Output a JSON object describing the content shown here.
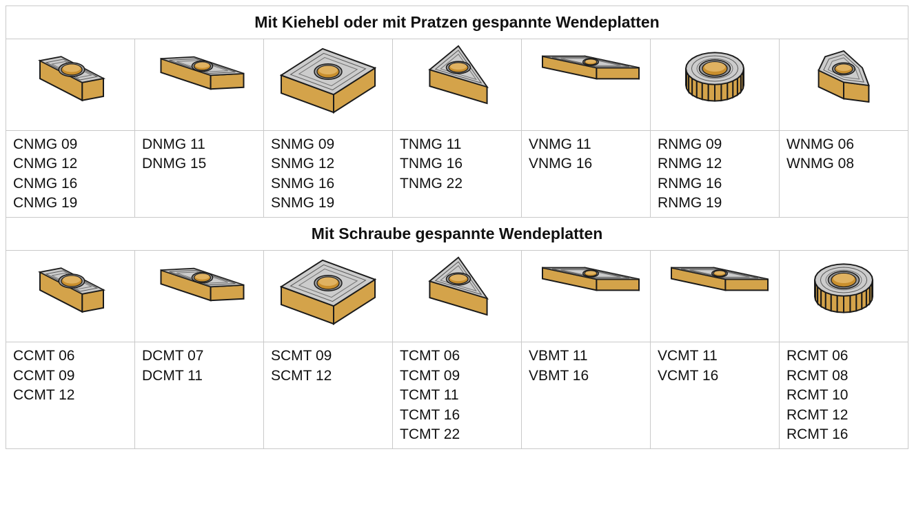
{
  "table": {
    "border_color": "#c9c9c9",
    "background": "#ffffff",
    "text_color": "#111111",
    "header_fontsize": 23,
    "cell_fontsize": 21,
    "column_count": 7
  },
  "insert_style": {
    "top_fill": "#bdbdbd",
    "top_highlight": "#e8e8e8",
    "side_fill": "#d4a34a",
    "side_shadow": "#8a6a28",
    "hole_fill": "#c98f2e",
    "hole_rim": "#9c9c9c",
    "outline": "#1a1a1a",
    "outline_width": 2
  },
  "sections": [
    {
      "title": "Mit Kiehebl oder mit Pratzen gespannte Wendeplatten",
      "items": [
        {
          "shape": "rhombus80",
          "codes": [
            "CNMG 09",
            "CNMG 12",
            "CNMG 16",
            "CNMG 19"
          ]
        },
        {
          "shape": "rhombus55",
          "codes": [
            "DNMG 11",
            "DNMG 15"
          ]
        },
        {
          "shape": "square",
          "codes": [
            "SNMG 09",
            "SNMG 12",
            "SNMG 16",
            "SNMG 19"
          ]
        },
        {
          "shape": "triangle",
          "codes": [
            "TNMG 11",
            "TNMG 16",
            "TNMG 22"
          ]
        },
        {
          "shape": "rhombus35",
          "codes": [
            "VNMG 11",
            "VNMG 16"
          ]
        },
        {
          "shape": "round",
          "codes": [
            "RNMG 09",
            "RNMG 12",
            "RNMG 16",
            "RNMG 19"
          ]
        },
        {
          "shape": "trigon",
          "codes": [
            "WNMG 06",
            "WNMG 08"
          ]
        }
      ]
    },
    {
      "title": "Mit Schraube gespannte Wendeplatten",
      "items": [
        {
          "shape": "rhombus80",
          "codes": [
            "CCMT 06",
            "CCMT 09",
            "CCMT 12"
          ]
        },
        {
          "shape": "rhombus55",
          "codes": [
            "DCMT 07",
            "DCMT 11"
          ]
        },
        {
          "shape": "square",
          "codes": [
            "SCMT 09",
            "SCMT 12"
          ]
        },
        {
          "shape": "triangle",
          "codes": [
            "TCMT 06",
            "TCMT 09",
            "TCMT 11",
            "TCMT 16",
            "TCMT 22"
          ]
        },
        {
          "shape": "rhombus35",
          "codes": [
            "VBMT 11",
            "VBMT 16"
          ]
        },
        {
          "shape": "rhombus35",
          "codes": [
            "VCMT 11",
            "VCMT 16"
          ]
        },
        {
          "shape": "round",
          "codes": [
            "RCMT 06",
            "RCMT 08",
            "RCMT 10",
            "RCMT 12",
            "RCMT 16"
          ]
        }
      ]
    }
  ]
}
